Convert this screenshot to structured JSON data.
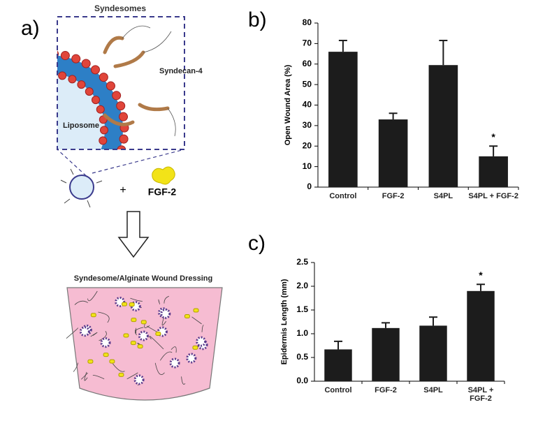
{
  "figure_a": {
    "panel": "a)",
    "title": "Syndesomes",
    "syndecan": "Syndecan-4",
    "liposome": "Liposome",
    "plus": "+",
    "fgf": "FGF-2",
    "dressing": "Syndesome/Alginate Wound Dressing"
  },
  "chart_data": [
    {
      "type": "bar",
      "panel": "b)",
      "y_label": "Open Wound Area (%)",
      "categories": [
        "Control",
        "FGF-2",
        "S4PL",
        "S4PL + FGF-2"
      ],
      "values": [
        66,
        33,
        59.5,
        15
      ],
      "errors": [
        5.5,
        3,
        12,
        5
      ],
      "color": "#1c1c1c",
      "annotation": "*",
      "ylim": [
        0,
        80
      ],
      "yticks": [
        0,
        10,
        20,
        30,
        40,
        50,
        60,
        70,
        80
      ]
    },
    {
      "type": "bar",
      "panel": "c)",
      "y_label": "Epidermis Length (mm)",
      "categories": [
        "Control",
        "FGF-2",
        "S4PL",
        "S4PL + FGF-2"
      ],
      "values": [
        0.67,
        1.12,
        1.17,
        1.9
      ],
      "errors": [
        0.17,
        0.11,
        0.18,
        0.14
      ],
      "color": "#1c1c1c",
      "annotation": "*",
      "ylim": [
        0,
        2.5
      ],
      "yticks": [
        {
          "value": 0,
          "label": "0.0"
        },
        0.5,
        {
          "value": 1,
          "label": "1.0"
        },
        1.5,
        {
          "value": 2,
          "label": "2.0"
        },
        2.5
      ]
    }
  ]
}
